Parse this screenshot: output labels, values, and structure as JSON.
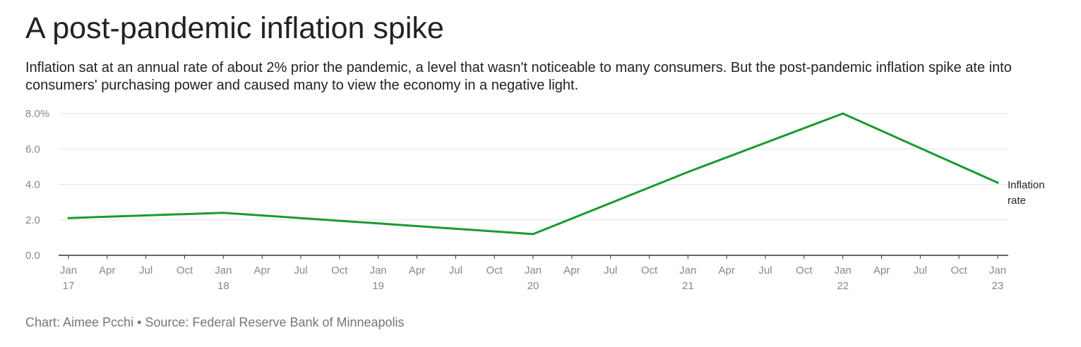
{
  "title": "A post-pandemic inflation spike",
  "subtitle": "Inflation sat at an annual rate of about 2% prior the pandemic, a level that wasn't noticeable to many consumers. But the post-pandemic inflation spike ate into consumers' purchasing power and caused many to view the economy in a negative light.",
  "footer": "Chart: Aimee Pcchi • Source: Federal Reserve Bank of Minneapolis",
  "colors": {
    "series": "#1a9a32",
    "grid": "#e4e4e4",
    "axis": "#333333",
    "tick_text": "#888888"
  },
  "chart_data": {
    "type": "line",
    "title": "A post-pandemic inflation spike",
    "xlabel": "",
    "ylabel": "",
    "ylim": [
      0,
      8
    ],
    "xlim": [
      2017.0,
      2023.0
    ],
    "y_ticks": [
      {
        "value": 8,
        "label": "8.0%"
      },
      {
        "value": 6,
        "label": "6.0"
      },
      {
        "value": 4,
        "label": "4.0"
      },
      {
        "value": 2,
        "label": "2.0"
      },
      {
        "value": 0,
        "label": "0.0"
      }
    ],
    "x_ticks": [
      {
        "value": 2017.0,
        "line1": "Jan",
        "line2": "17"
      },
      {
        "value": 2017.25,
        "line1": "Apr",
        "line2": ""
      },
      {
        "value": 2017.5,
        "line1": "Jul",
        "line2": ""
      },
      {
        "value": 2017.75,
        "line1": "Oct",
        "line2": ""
      },
      {
        "value": 2018.0,
        "line1": "Jan",
        "line2": "18"
      },
      {
        "value": 2018.25,
        "line1": "Apr",
        "line2": ""
      },
      {
        "value": 2018.5,
        "line1": "Jul",
        "line2": ""
      },
      {
        "value": 2018.75,
        "line1": "Oct",
        "line2": ""
      },
      {
        "value": 2019.0,
        "line1": "Jan",
        "line2": "19"
      },
      {
        "value": 2019.25,
        "line1": "Apr",
        "line2": ""
      },
      {
        "value": 2019.5,
        "line1": "Jul",
        "line2": ""
      },
      {
        "value": 2019.75,
        "line1": "Oct",
        "line2": ""
      },
      {
        "value": 2020.0,
        "line1": "Jan",
        "line2": "20"
      },
      {
        "value": 2020.25,
        "line1": "Apr",
        "line2": ""
      },
      {
        "value": 2020.5,
        "line1": "Jul",
        "line2": ""
      },
      {
        "value": 2020.75,
        "line1": "Oct",
        "line2": ""
      },
      {
        "value": 2021.0,
        "line1": "Jan",
        "line2": "21"
      },
      {
        "value": 2021.25,
        "line1": "Apr",
        "line2": ""
      },
      {
        "value": 2021.5,
        "line1": "Jul",
        "line2": ""
      },
      {
        "value": 2021.75,
        "line1": "Oct",
        "line2": ""
      },
      {
        "value": 2022.0,
        "line1": "Jan",
        "line2": "22"
      },
      {
        "value": 2022.25,
        "line1": "Apr",
        "line2": ""
      },
      {
        "value": 2022.5,
        "line1": "Jul",
        "line2": ""
      },
      {
        "value": 2022.75,
        "line1": "Oct",
        "line2": ""
      },
      {
        "value": 2023.0,
        "line1": "Jan",
        "line2": "23"
      }
    ],
    "series": [
      {
        "name": "Inflation rate",
        "label_lines": [
          "Inflation",
          "rate"
        ],
        "x": [
          2017.0,
          2018.0,
          2019.0,
          2020.0,
          2021.0,
          2022.0,
          2023.0
        ],
        "values": [
          2.1,
          2.4,
          1.8,
          1.2,
          4.7,
          8.0,
          4.1
        ]
      }
    ],
    "grid": true,
    "legend": "inline-right"
  }
}
